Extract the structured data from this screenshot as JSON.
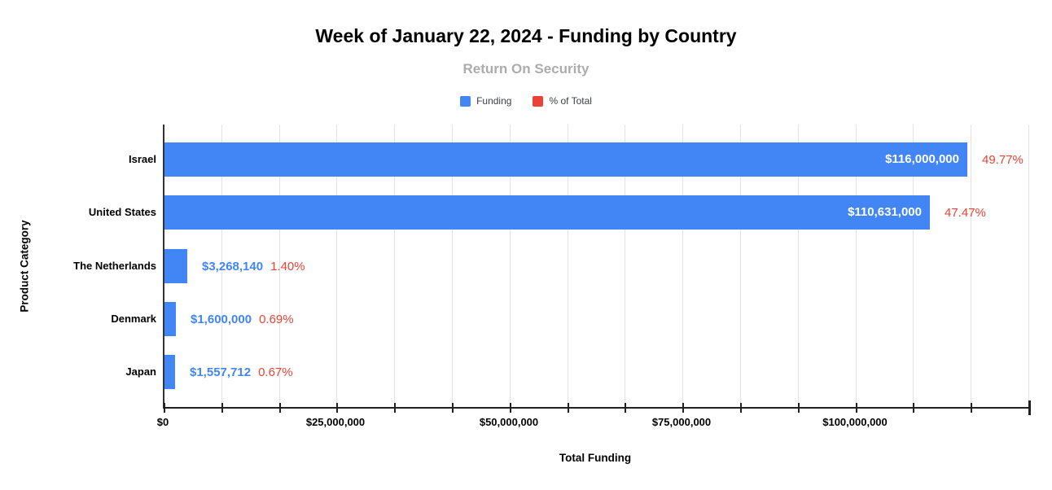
{
  "chart_data": {
    "type": "bar",
    "orientation": "horizontal",
    "title": "Week of January 22, 2024 - Funding by Country",
    "subtitle": "Return On Security",
    "xlabel": "Total Funding",
    "ylabel": "Product Category",
    "xlim": [
      0,
      125000000
    ],
    "gridline_count": 15,
    "grid": true,
    "legend_position": "top",
    "x_ticks": [
      {
        "value": 0,
        "label": "$0"
      },
      {
        "value": 25000000,
        "label": "$25,000,000"
      },
      {
        "value": 50000000,
        "label": "$50,000,000"
      },
      {
        "value": 75000000,
        "label": "$75,000,000"
      },
      {
        "value": 100000000,
        "label": "$100,000,000"
      }
    ],
    "legend": [
      {
        "label": "Funding",
        "color": "#4285F4"
      },
      {
        "label": "% of Total",
        "color": "#EA4335"
      }
    ],
    "categories": [
      "Israel",
      "United States",
      "The Netherlands",
      "Denmark",
      "Japan"
    ],
    "series": [
      {
        "name": "Funding",
        "values": [
          116000000,
          110631000,
          3268140,
          1600000,
          1557712
        ]
      },
      {
        "name": "% of Total",
        "values": [
          49.77,
          47.47,
          1.4,
          0.69,
          0.67
        ]
      }
    ],
    "rows": [
      {
        "category": "Israel",
        "funding": 116000000,
        "funding_label": "$116,000,000",
        "pct_label": "49.77%"
      },
      {
        "category": "United States",
        "funding": 110631000,
        "funding_label": "$110,631,000",
        "pct_label": "47.47%"
      },
      {
        "category": "The Netherlands",
        "funding": 3268140,
        "funding_label": "$3,268,140",
        "pct_label": "1.40%"
      },
      {
        "category": "Denmark",
        "funding": 1600000,
        "funding_label": "$1,600,000",
        "pct_label": "0.69%"
      },
      {
        "category": "Japan",
        "funding": 1557712,
        "funding_label": "$1,557,712",
        "pct_label": "0.67%"
      }
    ],
    "colors": {
      "bar": "#4285F4",
      "value_label_inside": "#FFFFFF",
      "value_label_outside": "#4285F4",
      "pct_label": "#EA4335",
      "gridline": "#E3E3E3",
      "axis": "#212121",
      "subtitle": "#ACACAC",
      "text": "#000000"
    }
  }
}
